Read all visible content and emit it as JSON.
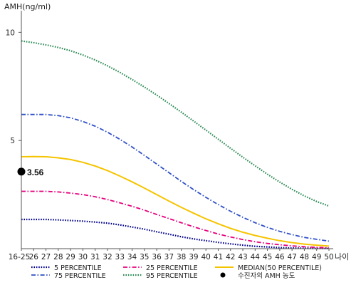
{
  "chart_data": {
    "type": "line",
    "title": "",
    "ylabel": "AMH(ng/ml)",
    "xlabel": "나이",
    "ylim": [
      0,
      11
    ],
    "yticks": [
      "5",
      "10"
    ],
    "categories": [
      "16-25",
      "26",
      "27",
      "28",
      "29",
      "30",
      "31",
      "32",
      "33",
      "34",
      "35",
      "36",
      "37",
      "38",
      "39",
      "40",
      "41",
      "42",
      "43",
      "44",
      "45",
      "46",
      "47",
      "48",
      "49",
      "50"
    ],
    "series": [
      {
        "name": "5 PERCENTILE",
        "color": "#00008b",
        "style": "dotted",
        "values": [
          1.35,
          1.35,
          1.35,
          1.33,
          1.3,
          1.27,
          1.23,
          1.18,
          1.1,
          1.0,
          0.9,
          0.78,
          0.67,
          0.55,
          0.45,
          0.37,
          0.29,
          0.22,
          0.16,
          0.11,
          0.08,
          0.05,
          0.03,
          0.02,
          0.01,
          0.01
        ]
      },
      {
        "name": "25 PERCENTILE",
        "color": "#e6007e",
        "style": "dashdot",
        "values": [
          2.65,
          2.65,
          2.65,
          2.62,
          2.57,
          2.5,
          2.4,
          2.27,
          2.12,
          1.96,
          1.78,
          1.58,
          1.39,
          1.2,
          1.01,
          0.84,
          0.68,
          0.54,
          0.42,
          0.32,
          0.24,
          0.18,
          0.13,
          0.09,
          0.06,
          0.04
        ]
      },
      {
        "name": "MEDIAN(50 PERCENTILE)",
        "color": "#f5c400",
        "style": "solid",
        "values": [
          4.25,
          4.26,
          4.25,
          4.2,
          4.12,
          3.99,
          3.82,
          3.61,
          3.36,
          3.09,
          2.8,
          2.5,
          2.2,
          1.91,
          1.64,
          1.38,
          1.15,
          0.94,
          0.76,
          0.61,
          0.48,
          0.37,
          0.28,
          0.21,
          0.16,
          0.12
        ]
      },
      {
        "name": "75 PERCENTILE",
        "color": "#3050c8",
        "style": "dashdot",
        "values": [
          6.2,
          6.2,
          6.2,
          6.15,
          6.05,
          5.88,
          5.66,
          5.38,
          5.06,
          4.7,
          4.31,
          3.91,
          3.51,
          3.11,
          2.73,
          2.37,
          2.04,
          1.73,
          1.45,
          1.2,
          0.98,
          0.8,
          0.65,
          0.52,
          0.43,
          0.35
        ]
      },
      {
        "name": "95 PERCENTILE",
        "color": "#2e8b57",
        "style": "dotted",
        "values": [
          9.6,
          9.52,
          9.42,
          9.3,
          9.15,
          8.95,
          8.72,
          8.45,
          8.15,
          7.82,
          7.47,
          7.1,
          6.71,
          6.31,
          5.9,
          5.48,
          5.06,
          4.64,
          4.23,
          3.83,
          3.44,
          3.08,
          2.74,
          2.44,
          2.18,
          1.97
        ]
      }
    ],
    "marker": {
      "name": "수진자의 AMH 농도",
      "category": "16-25",
      "value": 3.56,
      "label": "3.56",
      "color": "#000000"
    }
  }
}
